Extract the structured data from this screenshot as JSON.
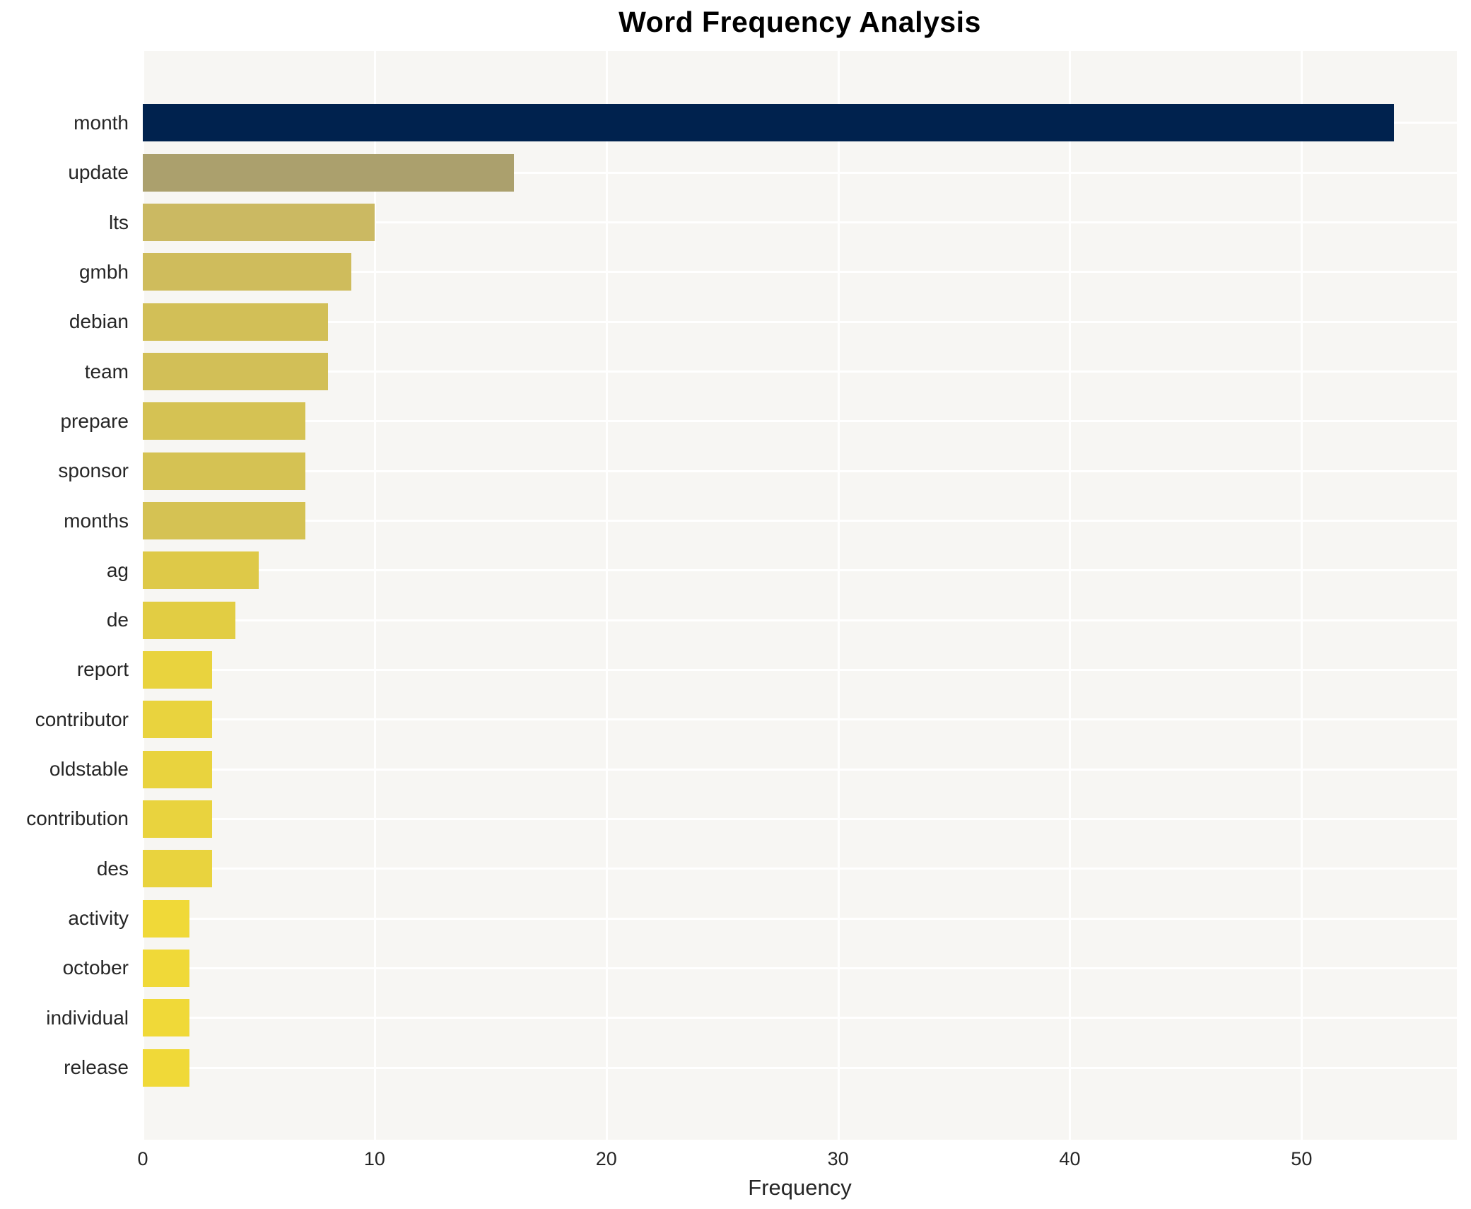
{
  "title": "Word Frequency Analysis",
  "chart_data": {
    "type": "bar",
    "orientation": "horizontal",
    "title": "Word Frequency Analysis",
    "xlabel": "Frequency",
    "ylabel": "",
    "categories": [
      "month",
      "update",
      "lts",
      "gmbh",
      "debian",
      "team",
      "prepare",
      "sponsor",
      "months",
      "ag",
      "de",
      "report",
      "contributor",
      "oldstable",
      "contribution",
      "des",
      "activity",
      "october",
      "individual",
      "release"
    ],
    "values": [
      54,
      16,
      10,
      9,
      8,
      8,
      7,
      7,
      7,
      5,
      4,
      3,
      3,
      3,
      3,
      3,
      2,
      2,
      2,
      2
    ],
    "bar_colors": [
      "#00224e",
      "#aba06d",
      "#cbb962",
      "#cfbc5c",
      "#d2bf57",
      "#d2bf57",
      "#d5c253",
      "#d5c253",
      "#d5c253",
      "#dec948",
      "#e2cd43",
      "#e9d33e",
      "#e9d33e",
      "#e9d33e",
      "#e9d33e",
      "#e9d33e",
      "#f0d938",
      "#f0d938",
      "#f0d938",
      "#f0d938"
    ],
    "xticks": [
      0,
      10,
      20,
      30,
      40,
      50
    ],
    "xlim": [
      0,
      56.7
    ],
    "grid": true,
    "gridline_color": "#ffffff",
    "plot_background": "#f7f6f3",
    "legend_position": "none"
  }
}
